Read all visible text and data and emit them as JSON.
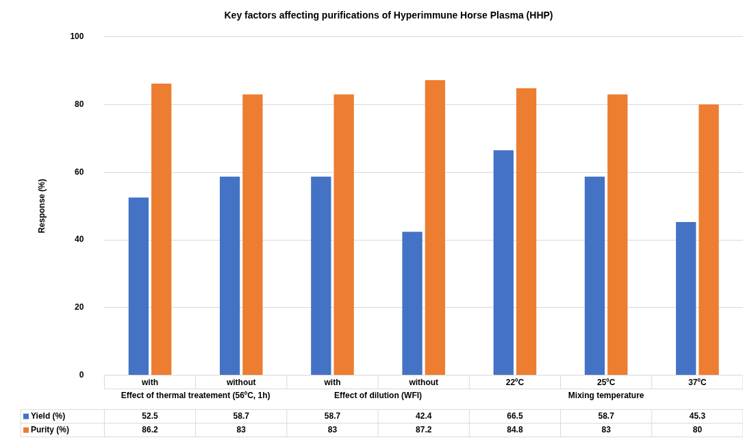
{
  "chart_data": {
    "type": "bar",
    "title": "Key factors affecting purifications of Hyperimmune Horse Plasma (HHP)",
    "ylabel": "Response (%)",
    "categories": [
      "with",
      "without",
      "with",
      "without",
      "22ºC",
      "25ºC",
      "37ºC"
    ],
    "annotations": [
      "Effect of thermal treatement (56ºC, 1h)",
      "Effect of dilution (WFI)",
      "Mixing temperature"
    ],
    "series": [
      {
        "name": "Yield (%)",
        "color": "#4472c4",
        "values": [
          52.5,
          58.7,
          58.7,
          42.4,
          66.5,
          58.7,
          45.3
        ]
      },
      {
        "name": "Purity (%)",
        "color": "#ed7d31",
        "values": [
          86.2,
          83,
          83,
          87.2,
          84.8,
          83,
          80
        ]
      }
    ],
    "ylim": [
      0,
      100
    ],
    "yticks": [
      0,
      20,
      40,
      60,
      80,
      100
    ],
    "grid": "y",
    "legend": "bottom",
    "data_labels": true
  }
}
